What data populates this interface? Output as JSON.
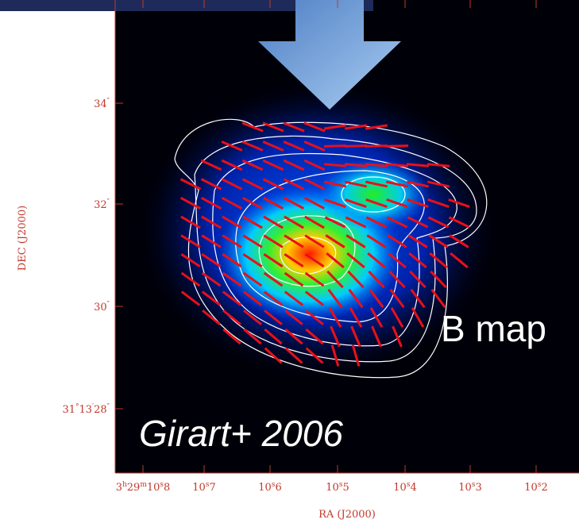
{
  "overlay": {
    "citation": "Girart+ 2006",
    "label": "B map"
  },
  "axes": {
    "x_label": "RA (J2000)",
    "y_label": "DEC (J2000)",
    "x_ticks": [
      [
        {
          "text": "3"
        },
        {
          "text": "h",
          "sup": true
        },
        {
          "text": "29"
        },
        {
          "text": "m",
          "sup": true
        },
        {
          "text": "10"
        },
        {
          "text": "s",
          "sup": true
        },
        {
          "text": "8"
        }
      ],
      [
        {
          "text": "10"
        },
        {
          "text": "s",
          "sup": true
        },
        {
          "text": "7"
        }
      ],
      [
        {
          "text": "10"
        },
        {
          "text": "s",
          "sup": true
        },
        {
          "text": "6"
        }
      ],
      [
        {
          "text": "10"
        },
        {
          "text": "s",
          "sup": true
        },
        {
          "text": "5"
        }
      ],
      [
        {
          "text": "10"
        },
        {
          "text": "s",
          "sup": true
        },
        {
          "text": "4"
        }
      ],
      [
        {
          "text": "10"
        },
        {
          "text": "s",
          "sup": true
        },
        {
          "text": "3"
        }
      ],
      [
        {
          "text": "10"
        },
        {
          "text": "s",
          "sup": true
        },
        {
          "text": "2"
        }
      ]
    ],
    "y_ticks": [
      [
        {
          "text": "34"
        },
        {
          "text": "″",
          "sup": true
        }
      ],
      [
        {
          "text": "32"
        },
        {
          "text": "″",
          "sup": true
        }
      ],
      [
        {
          "text": "30"
        },
        {
          "text": "″",
          "sup": true
        }
      ],
      [
        {
          "text": "31"
        },
        {
          "text": "°",
          "sup": true
        },
        {
          "text": "13"
        },
        {
          "text": "′",
          "sup": true
        },
        {
          "text": "28"
        },
        {
          "text": "″",
          "sup": true
        }
      ]
    ]
  }
}
